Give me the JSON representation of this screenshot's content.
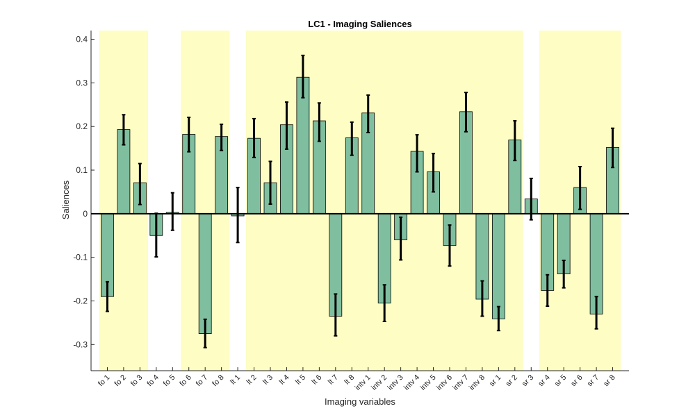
{
  "chart_data": {
    "type": "bar",
    "title": "LC1 - Imaging Saliences",
    "xlabel": "Imaging variables",
    "ylabel": "Saliences",
    "ylim": [
      -0.36,
      0.42
    ],
    "yticks": [
      -0.3,
      -0.2,
      -0.1,
      0,
      0.1,
      0.2,
      0.3,
      0.4
    ],
    "ytick_labels": [
      "-0.3",
      "-0.2",
      "-0.1",
      "0",
      "0.1",
      "0.2",
      "0.3",
      "0.4"
    ],
    "grid": false,
    "categories": [
      "fo 1",
      "fo 2",
      "fo 3",
      "fo 4",
      "fo 5",
      "fo 6",
      "fo 7",
      "fo 8",
      "lt 1",
      "lt 2",
      "lt 3",
      "lt 4",
      "lt 5",
      "lt 6",
      "lt 7",
      "lt 8",
      "intv 1",
      "intv 2",
      "intv 3",
      "intv 4",
      "intv 5",
      "intv 6",
      "intv 7",
      "intv 8",
      "sr 1",
      "sr 2",
      "sr 3",
      "sr 4",
      "sr 5",
      "sr 6",
      "sr 7",
      "sr 8"
    ],
    "values": [
      -0.19,
      0.193,
      0.071,
      -0.05,
      0.003,
      0.182,
      -0.275,
      0.177,
      -0.005,
      0.173,
      0.071,
      0.204,
      0.313,
      0.213,
      -0.235,
      0.174,
      0.231,
      -0.205,
      -0.06,
      0.143,
      0.096,
      -0.073,
      0.234,
      -0.196,
      -0.241,
      0.169,
      0.034,
      -0.176,
      -0.138,
      0.06,
      -0.23,
      0.152
    ],
    "error_low": [
      -0.224,
      0.158,
      0.021,
      -0.099,
      -0.038,
      0.142,
      -0.307,
      0.145,
      -0.066,
      0.129,
      0.022,
      0.148,
      0.266,
      0.166,
      -0.28,
      0.134,
      0.186,
      -0.247,
      -0.106,
      0.096,
      0.05,
      -0.12,
      0.188,
      -0.235,
      -0.268,
      0.122,
      -0.014,
      -0.212,
      -0.17,
      0.01,
      -0.264,
      0.106
    ],
    "error_high": [
      -0.156,
      0.227,
      0.115,
      0.001,
      0.048,
      0.221,
      -0.242,
      0.205,
      0.06,
      0.218,
      0.12,
      0.256,
      0.363,
      0.254,
      -0.184,
      0.21,
      0.272,
      -0.163,
      -0.008,
      0.181,
      0.138,
      -0.026,
      0.278,
      -0.154,
      -0.213,
      0.213,
      0.081,
      -0.14,
      -0.107,
      0.108,
      -0.19,
      0.196
    ],
    "highlight_groups": [
      [
        0,
        2
      ],
      [
        5,
        7
      ],
      [
        9,
        25
      ],
      [
        27,
        31
      ]
    ],
    "colors": {
      "bar": "#7fbf9f",
      "highlight": "#fefdc4",
      "errorbar": "#000000"
    }
  }
}
